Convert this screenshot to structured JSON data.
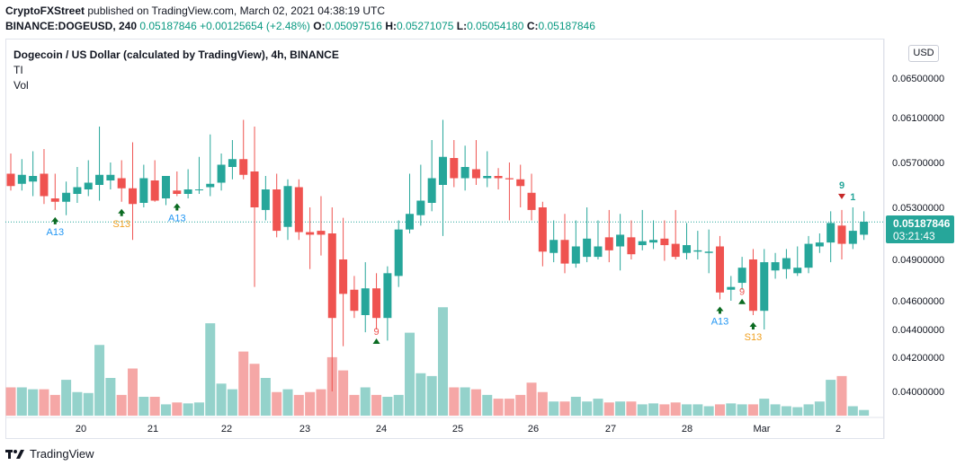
{
  "header": {
    "publisher": "CryptoFXStreet",
    "published_text": "published on TradingView.com, March 02, 2021 04:38:19 UTC"
  },
  "quote": {
    "symbol": "BINANCE:DOGEUSD, 240",
    "last": "0.05187846",
    "change": "+0.00125654 (+2.48%)",
    "o_label": "O:",
    "o": "0.05097516",
    "h_label": "H:",
    "h": "0.05271075",
    "l_label": "L:",
    "l": "0.05054180",
    "c_label": "C:",
    "c": "0.05187846"
  },
  "legend": {
    "title": "Dogecoin / US Dollar (calculated by TradingView), 4h, BINANCE",
    "indicator1": "TI",
    "indicator2": "Vol"
  },
  "currency_button": "USD",
  "price_tag": {
    "price": "0.05187846",
    "countdown": "03:21:43"
  },
  "footer": {
    "brand": "TradingView"
  },
  "colors": {
    "up": "#26a69a",
    "down": "#ef5350",
    "vol_up": "#94d2cb",
    "vol_down": "#f5a7a6",
    "marker_green": "#0b6b22",
    "marker_orange": "#f0a020",
    "marker_blue": "#2196f3",
    "marker_red": "#c62828"
  },
  "chart_data": {
    "type": "candlestick",
    "y_axis_labels": [
      "0.06500000",
      "0.06100000",
      "0.05700000",
      "0.05300000",
      "0.04900000",
      "0.04600000",
      "0.04400000",
      "0.04200000",
      "0.04000000"
    ],
    "x_axis_labels": [
      "20",
      "21",
      "22",
      "23",
      "24",
      "25",
      "26",
      "27",
      "28",
      "Mar",
      "2"
    ],
    "current_price": 0.05187846,
    "candles": [
      {
        "o": 0.056,
        "h": 0.0578,
        "l": 0.0545,
        "c": 0.0549,
        "v": 0.3
      },
      {
        "o": 0.0551,
        "h": 0.0573,
        "l": 0.0545,
        "c": 0.0559,
        "v": 0.3
      },
      {
        "o": 0.0553,
        "h": 0.058,
        "l": 0.054,
        "c": 0.0558,
        "v": 0.28
      },
      {
        "o": 0.056,
        "h": 0.0582,
        "l": 0.0533,
        "c": 0.054,
        "v": 0.28
      },
      {
        "o": 0.0538,
        "h": 0.056,
        "l": 0.0528,
        "c": 0.0535,
        "v": 0.22
      },
      {
        "o": 0.0535,
        "h": 0.0553,
        "l": 0.0524,
        "c": 0.0543,
        "v": 0.38
      },
      {
        "o": 0.0542,
        "h": 0.0566,
        "l": 0.0534,
        "c": 0.0548,
        "v": 0.25
      },
      {
        "o": 0.0546,
        "h": 0.0572,
        "l": 0.054,
        "c": 0.0552,
        "v": 0.24
      },
      {
        "o": 0.055,
        "h": 0.0602,
        "l": 0.0536,
        "c": 0.0559,
        "v": 0.75
      },
      {
        "o": 0.0554,
        "h": 0.057,
        "l": 0.0546,
        "c": 0.0559,
        "v": 0.4
      },
      {
        "o": 0.0556,
        "h": 0.0572,
        "l": 0.0535,
        "c": 0.0547,
        "v": 0.22
      },
      {
        "o": 0.0547,
        "h": 0.0588,
        "l": 0.0505,
        "c": 0.0533,
        "v": 0.5
      },
      {
        "o": 0.0534,
        "h": 0.0568,
        "l": 0.053,
        "c": 0.0556,
        "v": 0.2
      },
      {
        "o": 0.0554,
        "h": 0.0572,
        "l": 0.0535,
        "c": 0.0536,
        "v": 0.2
      },
      {
        "o": 0.0538,
        "h": 0.0558,
        "l": 0.0532,
        "c": 0.0558,
        "v": 0.12
      },
      {
        "o": 0.0545,
        "h": 0.0562,
        "l": 0.054,
        "c": 0.0542,
        "v": 0.14
      },
      {
        "o": 0.0542,
        "h": 0.0564,
        "l": 0.0538,
        "c": 0.0546,
        "v": 0.13
      },
      {
        "o": 0.0546,
        "h": 0.0575,
        "l": 0.0542,
        "c": 0.0546,
        "v": 0.14
      },
      {
        "o": 0.0548,
        "h": 0.0595,
        "l": 0.054,
        "c": 0.0551,
        "v": 0.98
      },
      {
        "o": 0.0552,
        "h": 0.0578,
        "l": 0.0545,
        "c": 0.0568,
        "v": 0.34
      },
      {
        "o": 0.0566,
        "h": 0.059,
        "l": 0.0555,
        "c": 0.0573,
        "v": 0.28
      },
      {
        "o": 0.0573,
        "h": 0.0608,
        "l": 0.0555,
        "c": 0.0559,
        "v": 0.68
      },
      {
        "o": 0.0562,
        "h": 0.0602,
        "l": 0.047,
        "c": 0.053,
        "v": 0.55
      },
      {
        "o": 0.0528,
        "h": 0.0558,
        "l": 0.052,
        "c": 0.0546,
        "v": 0.4
      },
      {
        "o": 0.0546,
        "h": 0.056,
        "l": 0.0507,
        "c": 0.0512,
        "v": 0.25
      },
      {
        "o": 0.0515,
        "h": 0.0555,
        "l": 0.0505,
        "c": 0.0549,
        "v": 0.28
      },
      {
        "o": 0.0548,
        "h": 0.0555,
        "l": 0.0505,
        "c": 0.0511,
        "v": 0.22
      },
      {
        "o": 0.0511,
        "h": 0.053,
        "l": 0.0483,
        "c": 0.0509,
        "v": 0.25
      },
      {
        "o": 0.0512,
        "h": 0.054,
        "l": 0.0493,
        "c": 0.0509,
        "v": 0.28
      },
      {
        "o": 0.051,
        "h": 0.053,
        "l": 0.04,
        "c": 0.0448,
        "v": 0.62
      },
      {
        "o": 0.049,
        "h": 0.0522,
        "l": 0.0428,
        "c": 0.0465,
        "v": 0.48
      },
      {
        "o": 0.0468,
        "h": 0.0478,
        "l": 0.0448,
        "c": 0.0453,
        "v": 0.22
      },
      {
        "o": 0.045,
        "h": 0.0488,
        "l": 0.0438,
        "c": 0.0469,
        "v": 0.3
      },
      {
        "o": 0.0469,
        "h": 0.048,
        "l": 0.044,
        "c": 0.0448,
        "v": 0.22
      },
      {
        "o": 0.0448,
        "h": 0.0485,
        "l": 0.0432,
        "c": 0.048,
        "v": 0.2
      },
      {
        "o": 0.0478,
        "h": 0.052,
        "l": 0.047,
        "c": 0.0513,
        "v": 0.22
      },
      {
        "o": 0.0513,
        "h": 0.056,
        "l": 0.051,
        "c": 0.0525,
        "v": 0.88
      },
      {
        "o": 0.0524,
        "h": 0.0568,
        "l": 0.0516,
        "c": 0.0536,
        "v": 0.45
      },
      {
        "o": 0.0534,
        "h": 0.059,
        "l": 0.0527,
        "c": 0.0556,
        "v": 0.42
      },
      {
        "o": 0.055,
        "h": 0.0608,
        "l": 0.0508,
        "c": 0.0575,
        "v": 1.15
      },
      {
        "o": 0.0574,
        "h": 0.059,
        "l": 0.0548,
        "c": 0.0556,
        "v": 0.3
      },
      {
        "o": 0.0556,
        "h": 0.0585,
        "l": 0.0545,
        "c": 0.0566,
        "v": 0.3
      },
      {
        "o": 0.0564,
        "h": 0.059,
        "l": 0.055,
        "c": 0.0556,
        "v": 0.28
      },
      {
        "o": 0.0556,
        "h": 0.058,
        "l": 0.0548,
        "c": 0.0558,
        "v": 0.22
      },
      {
        "o": 0.0558,
        "h": 0.0565,
        "l": 0.0546,
        "c": 0.0556,
        "v": 0.18
      },
      {
        "o": 0.0556,
        "h": 0.057,
        "l": 0.052,
        "c": 0.0555,
        "v": 0.18
      },
      {
        "o": 0.0555,
        "h": 0.0568,
        "l": 0.053,
        "c": 0.0549,
        "v": 0.22
      },
      {
        "o": 0.0543,
        "h": 0.056,
        "l": 0.052,
        "c": 0.0528,
        "v": 0.35
      },
      {
        "o": 0.053,
        "h": 0.0535,
        "l": 0.0485,
        "c": 0.0496,
        "v": 0.25
      },
      {
        "o": 0.0495,
        "h": 0.052,
        "l": 0.0488,
        "c": 0.0505,
        "v": 0.15
      },
      {
        "o": 0.0505,
        "h": 0.0525,
        "l": 0.048,
        "c": 0.0487,
        "v": 0.15
      },
      {
        "o": 0.0487,
        "h": 0.052,
        "l": 0.0484,
        "c": 0.05,
        "v": 0.2
      },
      {
        "o": 0.0492,
        "h": 0.053,
        "l": 0.0488,
        "c": 0.0506,
        "v": 0.15
      },
      {
        "o": 0.0492,
        "h": 0.052,
        "l": 0.049,
        "c": 0.05,
        "v": 0.18
      },
      {
        "o": 0.0507,
        "h": 0.0528,
        "l": 0.0488,
        "c": 0.0497,
        "v": 0.14
      },
      {
        "o": 0.05,
        "h": 0.0525,
        "l": 0.0482,
        "c": 0.0509,
        "v": 0.15
      },
      {
        "o": 0.0507,
        "h": 0.052,
        "l": 0.049,
        "c": 0.0494,
        "v": 0.15
      },
      {
        "o": 0.0501,
        "h": 0.0528,
        "l": 0.0497,
        "c": 0.0504,
        "v": 0.12
      },
      {
        "o": 0.0503,
        "h": 0.052,
        "l": 0.0498,
        "c": 0.0505,
        "v": 0.13
      },
      {
        "o": 0.0506,
        "h": 0.052,
        "l": 0.0489,
        "c": 0.0501,
        "v": 0.12
      },
      {
        "o": 0.0502,
        "h": 0.0528,
        "l": 0.049,
        "c": 0.0492,
        "v": 0.14
      },
      {
        "o": 0.0495,
        "h": 0.0518,
        "l": 0.049,
        "c": 0.0501,
        "v": 0.12
      },
      {
        "o": 0.0496,
        "h": 0.0512,
        "l": 0.049,
        "c": 0.0497,
        "v": 0.12
      },
      {
        "o": 0.0495,
        "h": 0.0513,
        "l": 0.048,
        "c": 0.0496,
        "v": 0.1
      },
      {
        "o": 0.05,
        "h": 0.0508,
        "l": 0.0461,
        "c": 0.0466,
        "v": 0.12
      },
      {
        "o": 0.0468,
        "h": 0.0478,
        "l": 0.046,
        "c": 0.047,
        "v": 0.13
      },
      {
        "o": 0.0473,
        "h": 0.0492,
        "l": 0.0468,
        "c": 0.0484,
        "v": 0.12
      },
      {
        "o": 0.049,
        "h": 0.0498,
        "l": 0.045,
        "c": 0.0453,
        "v": 0.12
      },
      {
        "o": 0.0453,
        "h": 0.0498,
        "l": 0.044,
        "c": 0.0488,
        "v": 0.18
      },
      {
        "o": 0.0482,
        "h": 0.0495,
        "l": 0.0476,
        "c": 0.0488,
        "v": 0.12
      },
      {
        "o": 0.0483,
        "h": 0.0498,
        "l": 0.0476,
        "c": 0.0491,
        "v": 0.1
      },
      {
        "o": 0.048,
        "h": 0.05,
        "l": 0.0478,
        "c": 0.0484,
        "v": 0.09
      },
      {
        "o": 0.0484,
        "h": 0.0508,
        "l": 0.048,
        "c": 0.0502,
        "v": 0.12
      },
      {
        "o": 0.05,
        "h": 0.051,
        "l": 0.0495,
        "c": 0.0503,
        "v": 0.15
      },
      {
        "o": 0.0503,
        "h": 0.0527,
        "l": 0.0488,
        "c": 0.0518,
        "v": 0.38
      },
      {
        "o": 0.0516,
        "h": 0.0528,
        "l": 0.049,
        "c": 0.0502,
        "v": 0.42
      },
      {
        "o": 0.0502,
        "h": 0.053,
        "l": 0.0498,
        "c": 0.0512,
        "v": 0.1
      },
      {
        "o": 0.0509,
        "h": 0.0527,
        "l": 0.0505,
        "c": 0.0519,
        "v": 0.06
      }
    ]
  },
  "markers": [
    {
      "text": "A13",
      "kind": "blue-up",
      "index": 4
    },
    {
      "text": "S13",
      "kind": "orange-up",
      "index": 10
    },
    {
      "text": "A13",
      "kind": "blue-up",
      "index": 15
    },
    {
      "text": "9",
      "kind": "red-up",
      "index": 33
    },
    {
      "text": "A13",
      "kind": "blue-up",
      "index": 64
    },
    {
      "text": "9",
      "kind": "red-up",
      "index": 66
    },
    {
      "text": "S13",
      "kind": "orange-up",
      "index": 67
    },
    {
      "text": "9",
      "kind": "green-down",
      "index": 75
    },
    {
      "text": "1",
      "kind": "green-text",
      "index": 76
    }
  ]
}
